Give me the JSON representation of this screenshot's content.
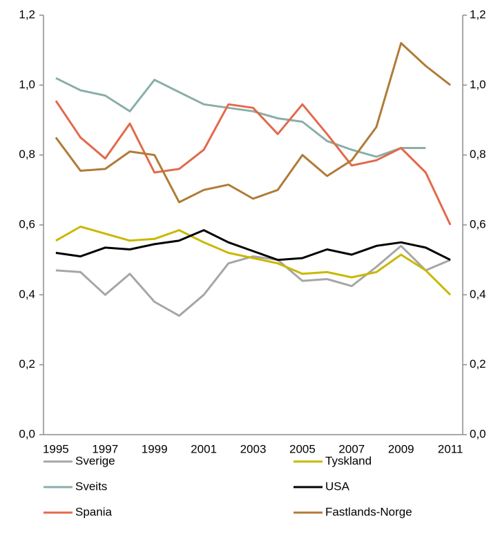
{
  "chart_data": {
    "type": "line",
    "categories": [
      "1995",
      null,
      "1997",
      null,
      "1999",
      null,
      "2001",
      null,
      "2003",
      null,
      "2005",
      null,
      "2007",
      null,
      "2009",
      null,
      "2011"
    ],
    "series": [
      {
        "name": "Sverige",
        "color": "#a6a6a6",
        "values": [
          0.47,
          0.465,
          0.4,
          0.46,
          0.38,
          0.34,
          0.4,
          0.49,
          0.51,
          0.5,
          0.44,
          0.445,
          0.425,
          0.48,
          0.54,
          0.47,
          0.5
        ]
      },
      {
        "name": "Tyskland",
        "color": "#c9b800",
        "values": [
          0.555,
          0.595,
          0.575,
          0.555,
          0.56,
          0.585,
          0.55,
          0.52,
          0.505,
          0.49,
          0.46,
          0.465,
          0.45,
          0.465,
          0.515,
          0.47,
          0.4
        ]
      },
      {
        "name": "Sveits",
        "color": "#8aaeaa",
        "values": [
          1.02,
          0.985,
          0.97,
          0.925,
          1.015,
          0.98,
          0.945,
          0.935,
          0.925,
          0.905,
          0.895,
          0.84,
          0.815,
          0.795,
          0.82,
          0.82,
          null
        ]
      },
      {
        "name": "USA",
        "color": "#000000",
        "values": [
          0.52,
          0.51,
          0.535,
          0.53,
          0.545,
          0.555,
          0.585,
          0.55,
          0.525,
          0.5,
          0.505,
          0.53,
          0.515,
          0.54,
          0.55,
          0.535,
          0.5
        ]
      },
      {
        "name": "Spania",
        "color": "#e2694b",
        "values": [
          0.955,
          0.85,
          0.79,
          0.89,
          0.75,
          0.76,
          0.815,
          0.945,
          0.935,
          0.86,
          0.945,
          0.86,
          0.77,
          0.785,
          0.82,
          0.75,
          0.6
        ]
      },
      {
        "name": "Fastlands-Norge",
        "color": "#b07b35",
        "values": [
          0.85,
          0.755,
          0.76,
          0.81,
          0.8,
          0.665,
          0.7,
          0.715,
          0.675,
          0.7,
          0.8,
          0.74,
          0.785,
          0.88,
          1.12,
          1.055,
          1.0
        ]
      }
    ],
    "ylim": [
      0,
      1.2
    ],
    "yticks": [
      {
        "value": 0,
        "label": "0,0"
      },
      {
        "value": 0.2,
        "label": "0,2"
      },
      {
        "value": 0.4,
        "label": "0,4"
      },
      {
        "value": 0.6,
        "label": "0,6"
      },
      {
        "value": 0.8,
        "label": "0,8"
      },
      {
        "value": 1.0,
        "label": "1,0"
      },
      {
        "value": 1.2,
        "label": "1,2"
      }
    ],
    "y2lim": [
      0,
      1.2
    ],
    "y2ticks": [
      {
        "value": 0,
        "label": "0,0"
      },
      {
        "value": 0.2,
        "label": "0,2"
      },
      {
        "value": 0.4,
        "label": "0,4"
      },
      {
        "value": 0.6,
        "label": "0,6"
      },
      {
        "value": 0.8,
        "label": "0,8"
      },
      {
        "value": 1.0,
        "label": "1,0"
      },
      {
        "value": 1.2,
        "label": "1,2"
      }
    ],
    "legend": "bottom",
    "grid": false
  }
}
